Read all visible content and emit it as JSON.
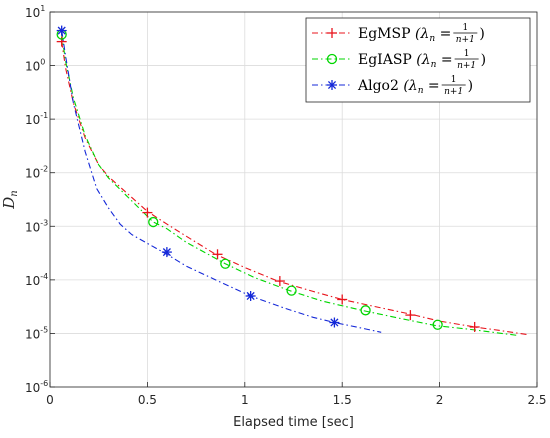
{
  "chart_data": {
    "type": "line",
    "xlabel": "Elapsed time [sec]",
    "ylabel_main": "D",
    "ylabel_sub": "n",
    "xlim": [
      0,
      2.5
    ],
    "ylim_log10": [
      -6,
      1
    ],
    "y_scale": "log",
    "grid": true,
    "legend_position": "top-right",
    "xticks": [
      "0",
      "0.5",
      "1",
      "1.5",
      "2",
      "2.5"
    ],
    "yticks": [
      {
        "base": "10",
        "exp": "-6"
      },
      {
        "base": "10",
        "exp": "-5"
      },
      {
        "base": "10",
        "exp": "-4"
      },
      {
        "base": "10",
        "exp": "-3"
      },
      {
        "base": "10",
        "exp": "-2"
      },
      {
        "base": "10",
        "exp": "-1"
      },
      {
        "base": "10",
        "exp": "0"
      },
      {
        "base": "10",
        "exp": "1"
      }
    ],
    "series": [
      {
        "name": "EgMSP",
        "lambda_text": "(λ",
        "lambda_sub": "n",
        "frac_num": "1",
        "frac_den": "n+1",
        "color": "#e8141c",
        "marker": "plus",
        "x": [
          0.06,
          0.08,
          0.12,
          0.18,
          0.25,
          0.3,
          0.4,
          0.5,
          0.6,
          0.7,
          0.85,
          1.0,
          1.17,
          1.35,
          1.5,
          1.7,
          1.85,
          2.0,
          2.18,
          2.3,
          2.45
        ],
        "y": [
          2.8,
          0.9,
          0.2,
          0.045,
          0.014,
          0.0085,
          0.004,
          0.0019,
          0.0011,
          0.00065,
          0.0003,
          0.00017,
          9.5e-05,
          6.1e-05,
          4.3e-05,
          3e-05,
          2.3e-05,
          1.7e-05,
          1.32e-05,
          1.15e-05,
          9.5e-06
        ],
        "marker_x": [
          0.06,
          0.5,
          0.86,
          1.18,
          1.5,
          1.85,
          2.18
        ],
        "marker_y": [
          2.8,
          0.0018,
          0.0003,
          9.5e-05,
          4.3e-05,
          2.2e-05,
          1.32e-05
        ]
      },
      {
        "name": "EgIASP",
        "lambda_text": "(λ",
        "lambda_sub": "n",
        "frac_num": "1",
        "frac_den": "n+1",
        "color": "#00d600",
        "marker": "circle",
        "x": [
          0.06,
          0.08,
          0.12,
          0.18,
          0.25,
          0.3,
          0.4,
          0.53,
          0.6,
          0.7,
          0.9,
          1.05,
          1.23,
          1.4,
          1.6,
          1.8,
          1.98,
          2.15,
          2.4
        ],
        "y": [
          3.8,
          1.2,
          0.25,
          0.05,
          0.014,
          0.008,
          0.0035,
          0.0012,
          0.0009,
          0.0005,
          0.0002,
          0.00011,
          6.3e-05,
          4e-05,
          2.7e-05,
          1.9e-05,
          1.4e-05,
          1.2e-05,
          9.2e-06
        ],
        "marker_x": [
          0.06,
          0.53,
          0.9,
          1.24,
          1.62,
          1.99
        ],
        "marker_y": [
          3.8,
          0.0012,
          0.0002,
          6.3e-05,
          2.7e-05,
          1.45e-05
        ]
      },
      {
        "name": "Algo2",
        "lambda_text": "(λ",
        "lambda_sub": "n",
        "frac_num": "1",
        "frac_den": "n+1",
        "color": "#1428d8",
        "marker": "asterisk",
        "x": [
          0.06,
          0.08,
          0.12,
          0.18,
          0.24,
          0.3,
          0.36,
          0.42,
          0.5,
          0.6,
          0.7,
          0.85,
          1.03,
          1.2,
          1.35,
          1.46,
          1.58,
          1.7
        ],
        "y": [
          4.5,
          1.5,
          0.2,
          0.025,
          0.005,
          0.0022,
          0.0011,
          0.0007,
          0.00048,
          0.0003,
          0.00018,
          0.0001,
          5e-05,
          3e-05,
          2e-05,
          1.6e-05,
          1.3e-05,
          1.05e-05
        ],
        "marker_x": [
          0.06,
          0.6,
          1.03,
          1.46
        ],
        "marker_y": [
          4.5,
          0.00033,
          5e-05,
          1.6e-05
        ]
      }
    ]
  }
}
